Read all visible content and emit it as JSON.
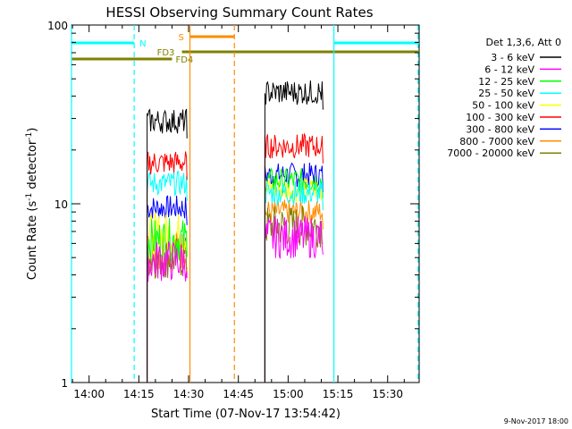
{
  "chart_data": {
    "type": "line",
    "title": "HESSI Observing Summary Count Rates",
    "xlabel": "Start Time (07-Nov-17 13:54:42)",
    "ylabel_main": "Count Rate (s",
    "ylabel_sup1": "-1",
    "ylabel_mid": " detector",
    "ylabel_sup2": "-1",
    "ylabel_end": ")",
    "yscale": "log",
    "ylim": [
      1,
      100
    ],
    "xlim_min": [
      834.7,
      939.5
    ],
    "x_ticks": [
      {
        "min": 840,
        "label": "14:00"
      },
      {
        "min": 855,
        "label": "14:15"
      },
      {
        "min": 870,
        "label": "14:30"
      },
      {
        "min": 885,
        "label": "14:45"
      },
      {
        "min": 900,
        "label": "15:00"
      },
      {
        "min": 915,
        "label": "15:15"
      },
      {
        "min": 930,
        "label": "15:30"
      }
    ],
    "y_ticks": [
      {
        "value": 1,
        "label": "1"
      },
      {
        "value": 10,
        "label": "10"
      },
      {
        "value": 100,
        "label": "100"
      }
    ],
    "legend_title": "Det 1,3,6, Att 0",
    "legend_placement": "right",
    "series": [
      {
        "name": "3 - 6 keV",
        "color": "#000000",
        "values": [
          29,
          42
        ]
      },
      {
        "name": "6 - 12 keV",
        "color": "#ff00ff",
        "values": [
          4.8,
          6.5
        ]
      },
      {
        "name": "12 - 25 keV",
        "color": "#00ff00",
        "values": [
          6.3,
          13.5
        ]
      },
      {
        "name": "25 - 50 keV",
        "color": "#00ffff",
        "values": [
          13,
          11.5
        ]
      },
      {
        "name": "50 - 100 keV",
        "color": "#ffff00",
        "values": [
          6.8,
          12
        ]
      },
      {
        "name": "100 - 300 keV",
        "color": "#ff0000",
        "values": [
          17,
          21
        ]
      },
      {
        "name": "300 - 800 keV",
        "color": "#0000ff",
        "values": [
          9.5,
          14.5
        ]
      },
      {
        "name": "800 - 7000 keV",
        "color": "#ff8c00",
        "values": [
          5.5,
          9
        ]
      },
      {
        "name": "7000 - 20000 keV",
        "color": "#808000",
        "values": [
          5,
          7.5
        ]
      }
    ],
    "data_intervals_min": [
      [
        857.5,
        869.5
      ],
      [
        893,
        910.5
      ]
    ],
    "flags": [
      {
        "label": "N",
        "color": "#00ffff",
        "start_min": 834.7,
        "end_min": 853.6
      },
      {
        "label": "N",
        "color": "#00ffff",
        "start_min": 913.8,
        "end_min": 939.5
      },
      {
        "label": "S",
        "color": "#ff8c00",
        "start_min": 870.4,
        "end_min": 883.8
      },
      {
        "label": "FD3",
        "color": "#808000",
        "start_min": 868,
        "end_min": 939.5
      },
      {
        "label": "FD4",
        "color": "#808000",
        "start_min": 834.7,
        "end_min": 865
      }
    ],
    "vlines": [
      {
        "min": 834.7,
        "color": "#00ffff",
        "style": "solid"
      },
      {
        "min": 853.6,
        "color": "#00ffff",
        "style": "dashed"
      },
      {
        "min": 870.4,
        "color": "#ff8c00",
        "style": "solid"
      },
      {
        "min": 883.8,
        "color": "#ff8c00",
        "style": "dashed"
      },
      {
        "min": 913.8,
        "color": "#00ffff",
        "style": "solid"
      },
      {
        "min": 939.2,
        "color": "#00ffff",
        "style": "dashed"
      }
    ]
  },
  "footer_date": "9-Nov-2017 18:00"
}
